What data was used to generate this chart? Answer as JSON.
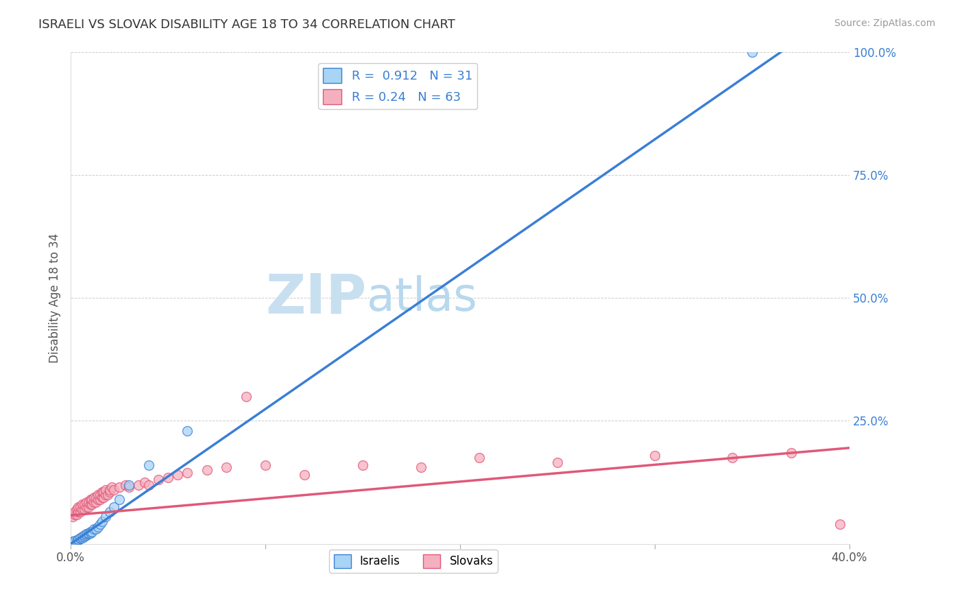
{
  "title": "ISRAELI VS SLOVAK DISABILITY AGE 18 TO 34 CORRELATION CHART",
  "source": "Source: ZipAtlas.com",
  "ylabel": "Disability Age 18 to 34",
  "xlim": [
    0.0,
    0.4
  ],
  "ylim": [
    0.0,
    1.0
  ],
  "xticks": [
    0.0,
    0.1,
    0.2,
    0.3,
    0.4
  ],
  "xtick_labels": [
    "0.0%",
    "",
    "",
    "",
    "40.0%"
  ],
  "yticks": [
    0.0,
    0.25,
    0.5,
    0.75,
    1.0
  ],
  "ytick_labels": [
    "",
    "25.0%",
    "50.0%",
    "75.0%",
    "100.0%"
  ],
  "israeli_R": 0.912,
  "israeli_N": 31,
  "slovak_R": 0.24,
  "slovak_N": 63,
  "israeli_color": "#a8d4f5",
  "slovak_color": "#f5b0c0",
  "israeli_line_color": "#3a7fd5",
  "slovak_line_color": "#e05878",
  "watermark_zip_color": "#c8dff0",
  "watermark_atlas_color": "#b8d8ed",
  "israeli_scatter_x": [
    0.001,
    0.002,
    0.003,
    0.004,
    0.004,
    0.005,
    0.005,
    0.006,
    0.006,
    0.007,
    0.007,
    0.008,
    0.008,
    0.009,
    0.009,
    0.01,
    0.01,
    0.011,
    0.012,
    0.013,
    0.014,
    0.015,
    0.016,
    0.018,
    0.02,
    0.022,
    0.025,
    0.03,
    0.04,
    0.06,
    0.35
  ],
  "israeli_scatter_y": [
    0.005,
    0.006,
    0.007,
    0.008,
    0.009,
    0.01,
    0.012,
    0.012,
    0.015,
    0.015,
    0.018,
    0.018,
    0.02,
    0.02,
    0.022,
    0.022,
    0.025,
    0.025,
    0.03,
    0.03,
    0.035,
    0.04,
    0.045,
    0.055,
    0.065,
    0.075,
    0.09,
    0.12,
    0.16,
    0.23,
    1.0
  ],
  "slovak_scatter_x": [
    0.001,
    0.002,
    0.002,
    0.003,
    0.003,
    0.004,
    0.004,
    0.005,
    0.005,
    0.006,
    0.006,
    0.007,
    0.007,
    0.008,
    0.008,
    0.009,
    0.009,
    0.01,
    0.01,
    0.011,
    0.011,
    0.012,
    0.012,
    0.013,
    0.013,
    0.014,
    0.014,
    0.015,
    0.015,
    0.016,
    0.016,
    0.017,
    0.017,
    0.018,
    0.018,
    0.019,
    0.02,
    0.02,
    0.021,
    0.022,
    0.025,
    0.028,
    0.03,
    0.035,
    0.038,
    0.04,
    0.045,
    0.05,
    0.055,
    0.06,
    0.07,
    0.08,
    0.09,
    0.1,
    0.12,
    0.15,
    0.18,
    0.21,
    0.25,
    0.3,
    0.34,
    0.37,
    0.395
  ],
  "slovak_scatter_y": [
    0.055,
    0.06,
    0.065,
    0.06,
    0.07,
    0.065,
    0.075,
    0.065,
    0.075,
    0.07,
    0.08,
    0.07,
    0.08,
    0.075,
    0.085,
    0.075,
    0.085,
    0.08,
    0.09,
    0.08,
    0.09,
    0.085,
    0.095,
    0.085,
    0.095,
    0.09,
    0.1,
    0.09,
    0.1,
    0.095,
    0.105,
    0.095,
    0.105,
    0.1,
    0.11,
    0.1,
    0.105,
    0.11,
    0.115,
    0.11,
    0.115,
    0.12,
    0.115,
    0.12,
    0.125,
    0.12,
    0.13,
    0.135,
    0.14,
    0.145,
    0.15,
    0.155,
    0.3,
    0.16,
    0.14,
    0.16,
    0.155,
    0.175,
    0.165,
    0.18,
    0.175,
    0.185,
    0.04
  ],
  "israeli_line_x": [
    0.0,
    0.365
  ],
  "israeli_line_y": [
    0.0,
    1.0
  ],
  "slovak_line_x": [
    0.0,
    0.4
  ],
  "slovak_line_y": [
    0.058,
    0.195
  ]
}
